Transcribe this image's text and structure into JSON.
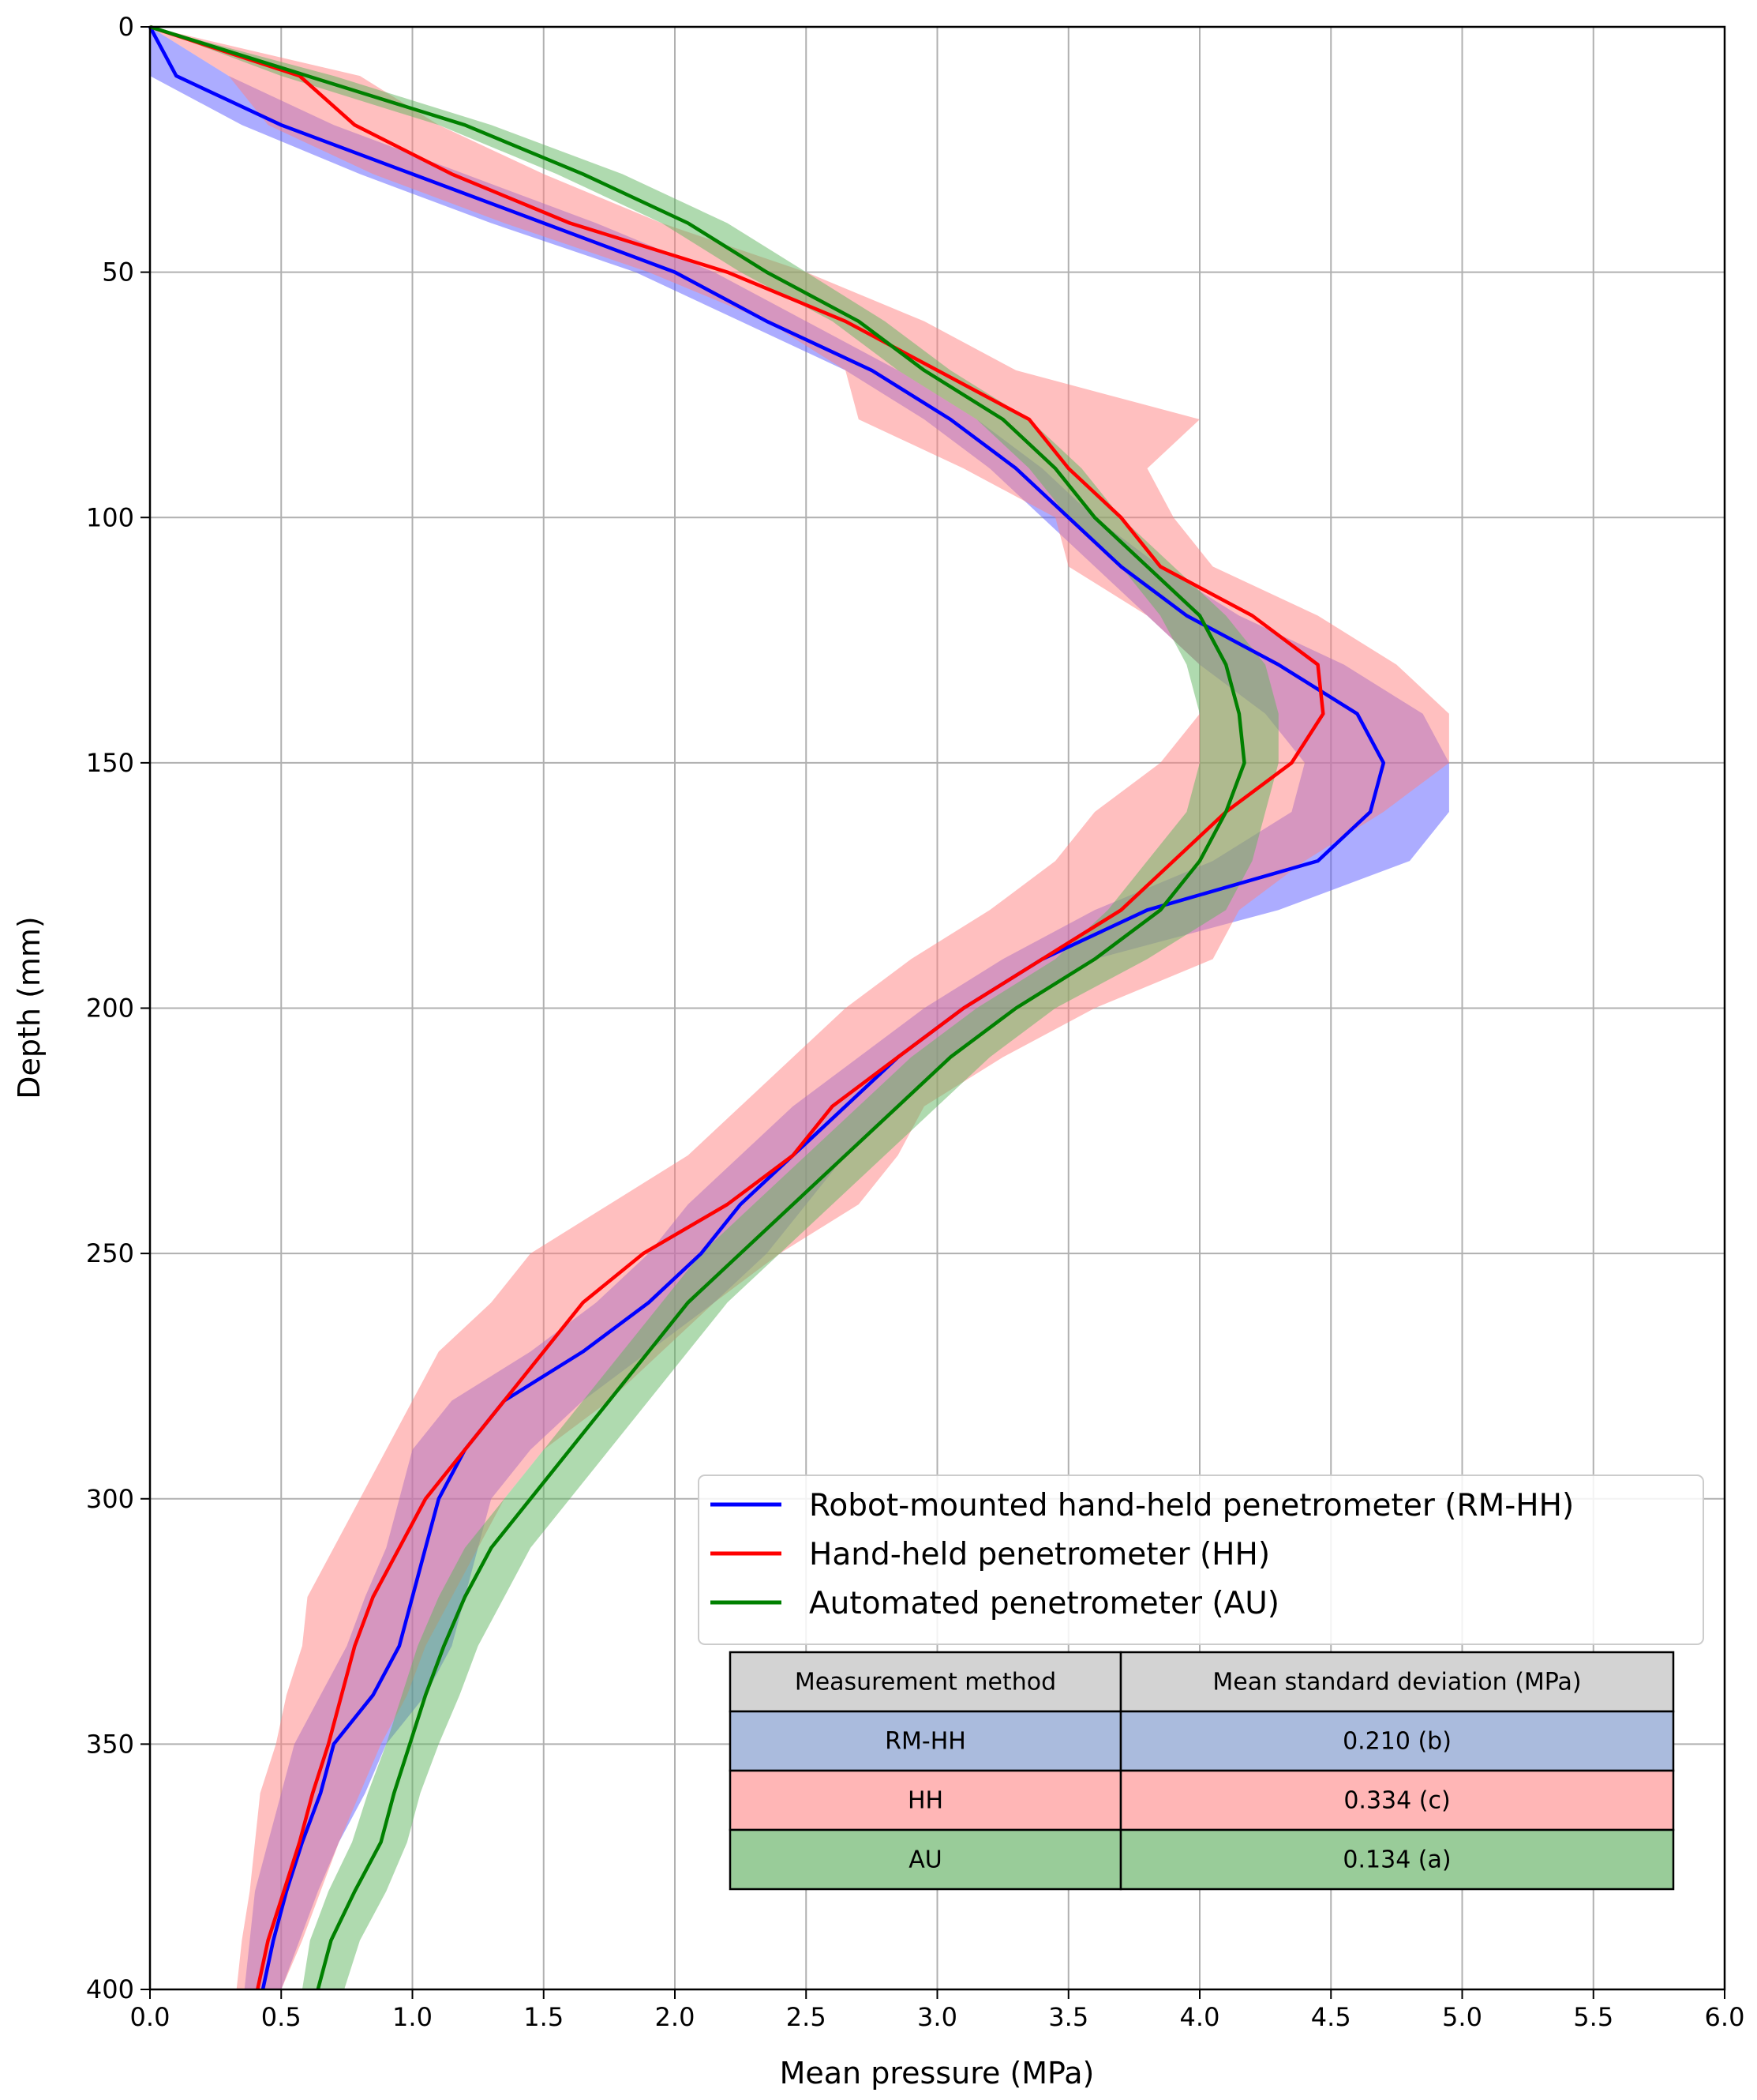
{
  "chart_data": {
    "type": "line",
    "title": "",
    "xlabel": "Mean pressure (MPa)",
    "ylabel": "Depth (mm)",
    "xlim": [
      0.0,
      6.0
    ],
    "ylim": [
      400,
      0
    ],
    "y_inverted": true,
    "grid": true,
    "x_ticks": [
      "0.0",
      "0.5",
      "1.0",
      "1.5",
      "2.0",
      "2.5",
      "3.0",
      "3.5",
      "4.0",
      "4.5",
      "5.0",
      "5.5",
      "6.0"
    ],
    "y_ticks": [
      "0",
      "50",
      "100",
      "150",
      "200",
      "250",
      "300",
      "350",
      "400"
    ],
    "legend_position": "lower-right",
    "series": [
      {
        "name": "Robot-mounted hand-held penetrometer (RM-HH)",
        "color": "#0000ff",
        "band_color": "#5a5aff",
        "depth": [
          0,
          10,
          20,
          30,
          40,
          50,
          60,
          70,
          80,
          90,
          100,
          110,
          120,
          130,
          140,
          150,
          160,
          170,
          180,
          190,
          200,
          210,
          220,
          230,
          240,
          250,
          260,
          270,
          280,
          290,
          300,
          310,
          320,
          330,
          340,
          350,
          360,
          370,
          380,
          390,
          400
        ],
        "mean": [
          0.0,
          0.1,
          0.5,
          1.0,
          1.5,
          2.0,
          2.35,
          2.75,
          3.05,
          3.3,
          3.5,
          3.7,
          3.95,
          4.3,
          4.6,
          4.7,
          4.65,
          4.45,
          3.8,
          3.4,
          3.1,
          2.85,
          2.65,
          2.45,
          2.25,
          2.1,
          1.9,
          1.65,
          1.35,
          1.2,
          1.1,
          1.05,
          1.0,
          0.95,
          0.85,
          0.7,
          0.65,
          0.58,
          0.52,
          0.47,
          0.43
        ],
        "lower": [
          0.0,
          0.0,
          0.35,
          0.8,
          1.3,
          1.85,
          2.25,
          2.65,
          2.95,
          3.2,
          3.4,
          3.6,
          3.8,
          4.0,
          4.25,
          4.4,
          4.35,
          4.05,
          3.6,
          3.25,
          2.95,
          2.7,
          2.45,
          2.25,
          2.05,
          1.9,
          1.7,
          1.45,
          1.15,
          1.0,
          0.95,
          0.9,
          0.82,
          0.75,
          0.65,
          0.55,
          0.5,
          0.45,
          0.4,
          0.38,
          0.36
        ],
        "upper": [
          0.0,
          0.3,
          0.7,
          1.2,
          1.7,
          2.15,
          2.5,
          2.85,
          3.15,
          3.4,
          3.6,
          3.85,
          4.15,
          4.55,
          4.85,
          4.95,
          4.95,
          4.8,
          4.3,
          3.6,
          3.3,
          3.05,
          2.85,
          2.65,
          2.5,
          2.35,
          2.15,
          1.9,
          1.65,
          1.45,
          1.3,
          1.25,
          1.2,
          1.15,
          1.05,
          0.9,
          0.82,
          0.72,
          0.64,
          0.57,
          0.5
        ]
      },
      {
        "name": "Hand-held penetrometer (HH)",
        "color": "#ff0000",
        "band_color": "#ff8080",
        "depth": [
          0,
          10,
          20,
          30,
          40,
          50,
          60,
          70,
          80,
          90,
          100,
          110,
          120,
          130,
          140,
          150,
          160,
          170,
          180,
          190,
          200,
          210,
          220,
          230,
          240,
          250,
          260,
          270,
          280,
          290,
          300,
          310,
          320,
          330,
          340,
          350,
          360,
          370,
          380,
          390,
          400
        ],
        "mean": [
          0.0,
          0.57,
          0.78,
          1.15,
          1.6,
          2.2,
          2.65,
          3.0,
          3.35,
          3.5,
          3.7,
          3.85,
          4.2,
          4.45,
          4.47,
          4.35,
          4.1,
          3.9,
          3.7,
          3.4,
          3.1,
          2.85,
          2.6,
          2.45,
          2.2,
          1.88,
          1.65,
          1.5,
          1.35,
          1.2,
          1.05,
          0.95,
          0.85,
          0.78,
          0.73,
          0.68,
          0.62,
          0.57,
          0.51,
          0.45,
          0.41
        ],
        "lower": [
          0.0,
          0.3,
          0.45,
          0.85,
          1.35,
          1.9,
          2.35,
          2.65,
          2.7,
          3.1,
          3.45,
          3.5,
          3.8,
          4.0,
          4.0,
          3.85,
          3.6,
          3.45,
          3.2,
          2.9,
          2.65,
          2.45,
          2.25,
          2.05,
          1.75,
          1.45,
          1.3,
          1.1,
          1.0,
          0.9,
          0.8,
          0.7,
          0.6,
          0.58,
          0.52,
          0.48,
          0.42,
          0.4,
          0.38,
          0.35,
          0.33
        ],
        "upper": [
          0.0,
          0.8,
          1.1,
          1.5,
          1.95,
          2.5,
          2.95,
          3.3,
          4.0,
          3.8,
          3.9,
          4.05,
          4.45,
          4.75,
          4.95,
          4.95,
          4.7,
          4.4,
          4.15,
          4.05,
          3.6,
          3.25,
          2.95,
          2.85,
          2.7,
          2.4,
          2.15,
          1.95,
          1.75,
          1.5,
          1.35,
          1.25,
          1.15,
          1.05,
          0.98,
          0.88,
          0.8,
          0.72,
          0.65,
          0.58,
          0.5
        ]
      },
      {
        "name": "Automated penetrometer (AU)",
        "color": "#008000",
        "band_color": "#5fb55f",
        "depth": [
          0,
          10,
          20,
          30,
          40,
          50,
          60,
          70,
          80,
          90,
          100,
          110,
          120,
          130,
          140,
          150,
          160,
          170,
          180,
          190,
          200,
          210,
          220,
          230,
          240,
          250,
          260,
          270,
          280,
          290,
          300,
          310,
          320,
          330,
          340,
          350,
          360,
          370,
          380,
          390,
          400
        ],
        "mean": [
          0.0,
          0.6,
          1.2,
          1.65,
          2.05,
          2.35,
          2.7,
          2.95,
          3.25,
          3.45,
          3.6,
          3.8,
          4.0,
          4.1,
          4.15,
          4.17,
          4.1,
          4.0,
          3.85,
          3.6,
          3.3,
          3.05,
          2.85,
          2.65,
          2.45,
          2.25,
          2.05,
          1.9,
          1.75,
          1.6,
          1.45,
          1.3,
          1.2,
          1.12,
          1.05,
          0.99,
          0.93,
          0.88,
          0.78,
          0.69,
          0.64
        ],
        "lower": [
          0.0,
          0.5,
          1.1,
          1.55,
          1.95,
          2.25,
          2.6,
          2.85,
          3.15,
          3.35,
          3.5,
          3.7,
          3.85,
          3.95,
          4.0,
          4.0,
          3.95,
          3.8,
          3.65,
          3.45,
          3.15,
          2.9,
          2.7,
          2.5,
          2.3,
          2.1,
          1.95,
          1.8,
          1.65,
          1.5,
          1.35,
          1.2,
          1.1,
          1.02,
          0.96,
          0.9,
          0.83,
          0.77,
          0.68,
          0.61,
          0.58
        ],
        "upper": [
          0.0,
          0.7,
          1.3,
          1.8,
          2.2,
          2.5,
          2.8,
          3.05,
          3.35,
          3.55,
          3.7,
          3.9,
          4.1,
          4.25,
          4.3,
          4.3,
          4.25,
          4.2,
          4.1,
          3.8,
          3.45,
          3.2,
          3.0,
          2.8,
          2.6,
          2.4,
          2.2,
          2.05,
          1.9,
          1.75,
          1.6,
          1.45,
          1.35,
          1.25,
          1.18,
          1.1,
          1.03,
          0.98,
          0.9,
          0.8,
          0.74
        ]
      }
    ],
    "table": {
      "headers": [
        "Measurement method",
        "Mean standard deviation (MPa)"
      ],
      "rows": [
        {
          "method": "RM-HH",
          "value": "0.210 (b)",
          "color": "#aabbdd"
        },
        {
          "method": "HH",
          "value": "0.334 (c)",
          "color": "#ffb6b6"
        },
        {
          "method": "AU",
          "value": "0.134 (a)",
          "color": "#99cc99"
        }
      ],
      "header_color": "#d3d3d3"
    }
  }
}
